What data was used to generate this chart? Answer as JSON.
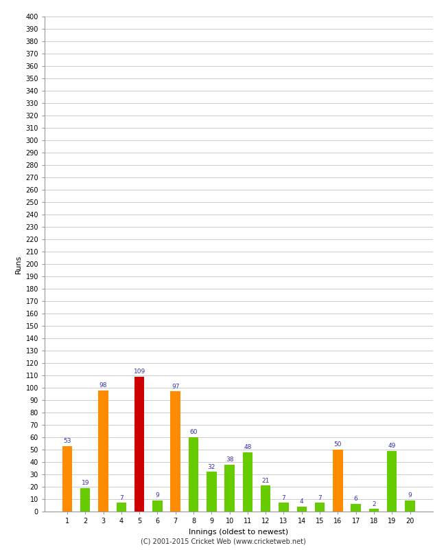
{
  "innings": [
    1,
    2,
    3,
    4,
    5,
    6,
    7,
    8,
    9,
    10,
    11,
    12,
    13,
    14,
    15,
    16,
    17,
    18,
    19,
    20
  ],
  "values": [
    53,
    19,
    98,
    7,
    109,
    9,
    97,
    60,
    32,
    38,
    48,
    21,
    7,
    4,
    7,
    50,
    6,
    2,
    49,
    9
  ],
  "bar_colors": [
    "#FF8C00",
    "#66CC00",
    "#FF8C00",
    "#66CC00",
    "#CC0000",
    "#66CC00",
    "#FF8C00",
    "#66CC00",
    "#66CC00",
    "#66CC00",
    "#66CC00",
    "#66CC00",
    "#66CC00",
    "#66CC00",
    "#66CC00",
    "#FF8C00",
    "#66CC00",
    "#66CC00",
    "#66CC00",
    "#66CC00"
  ],
  "xlabel": "Innings (oldest to newest)",
  "ylabel": "Runs",
  "ylim": [
    0,
    400
  ],
  "ytick_step": 10,
  "background_color": "#ffffff",
  "plot_bg_color": "#ffffff",
  "grid_color": "#cccccc",
  "label_color": "#3333AA",
  "label_fontsize": 6.5,
  "tick_fontsize": 7,
  "axis_label_fontsize": 8,
  "footer": "(C) 2001-2015 Cricket Web (www.cricketweb.net)",
  "footer_fontsize": 7
}
